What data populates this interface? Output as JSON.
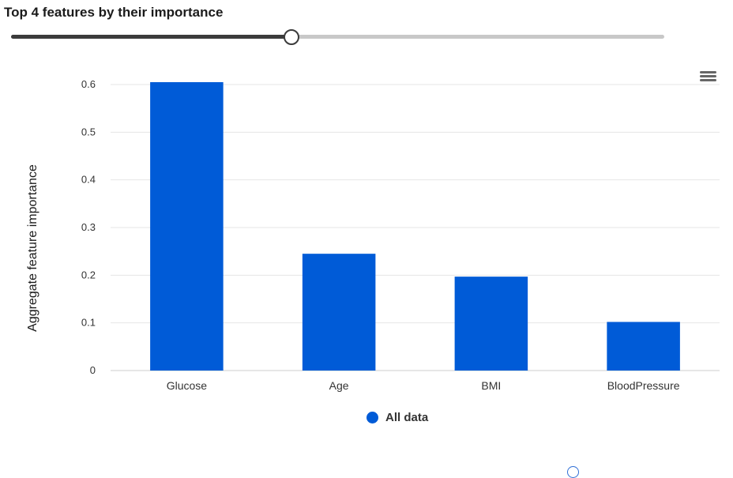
{
  "header": {
    "title": "Top 4 features by their importance"
  },
  "slider": {
    "value": 4,
    "fraction": 0.428
  },
  "colors": {
    "bar": "#005BD7",
    "grid": "#e6e6e6",
    "axis": "#cccccc",
    "tick_text": "#333333",
    "slider_fill": "#3b3b3b",
    "slider_track": "#c8c8c8"
  },
  "toolbar": {
    "menu_icon": "hamburger-menu-icon"
  },
  "legend": {
    "label": "All data"
  },
  "chart_data": {
    "type": "bar",
    "categories": [
      "Glucose",
      "Age",
      "BMI",
      "BloodPressure"
    ],
    "series": [
      {
        "name": "All data",
        "values": [
          0.605,
          0.245,
          0.197,
          0.102
        ]
      }
    ],
    "title": "",
    "xlabel": "",
    "ylabel": "Aggregate feature importance",
    "ylim": [
      0,
      0.6
    ],
    "yticks": [
      0,
      0.1,
      0.2,
      0.3,
      0.4,
      0.5,
      0.6
    ],
    "ytick_labels": [
      "0",
      "0.1",
      "0.2",
      "0.3",
      "0.4",
      "0.5",
      "0.6"
    ],
    "grid": true,
    "legend_position": "bottom-center"
  }
}
